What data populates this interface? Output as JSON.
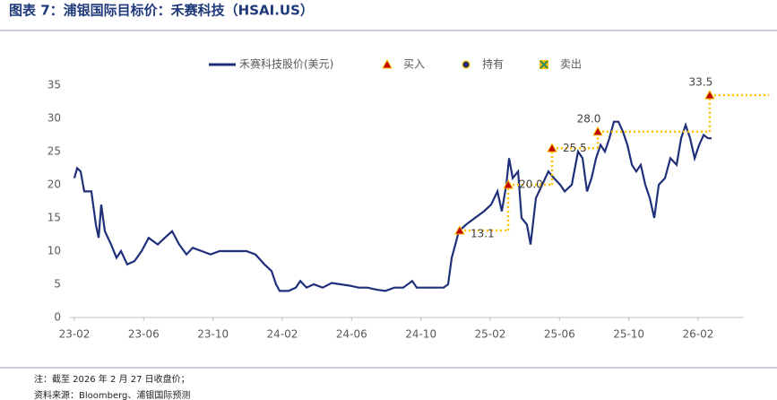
{
  "header": {
    "title": "图表 7：浦银国际目标价：禾赛科技（HSAI.US）"
  },
  "notes": [
    "注：截至 2026 年 2 月 27 日收盘价；",
    "资料来源：Bloomberg、浦银国际预测"
  ],
  "chart_data": {
    "type": "line",
    "series": [
      {
        "name": "禾赛科技股价(美元)",
        "color": "#1f2f7a",
        "x": [
          0,
          0.16,
          0.36,
          0.57,
          0.98,
          1.24,
          1.4,
          1.55,
          1.76,
          2.12,
          2.43,
          2.69,
          3.05,
          3.47,
          3.88,
          4.29,
          4.81,
          5.22,
          5.64,
          6.05,
          6.47,
          6.83,
          7.35,
          7.86,
          8.38,
          8.9,
          9.41,
          9.93,
          10.45,
          10.97,
          11.38,
          11.64,
          11.85,
          12.36,
          12.78,
          13.04,
          13.4,
          13.81,
          14.33,
          14.85,
          15.36,
          15.88,
          16.4,
          16.92,
          17.43,
          17.95,
          18.47,
          18.98,
          19.5,
          19.76,
          20.28,
          20.8,
          21.31,
          21.57,
          21.78,
          21.99,
          22.19,
          22.61,
          23.12,
          23.64,
          24.05,
          24.42,
          24.67,
          24.93,
          25.09,
          25.3,
          25.61,
          25.81,
          26.12,
          26.33,
          26.64,
          27.0,
          27.36,
          27.68,
          28.04,
          28.3,
          28.71,
          29.07,
          29.33,
          29.59,
          29.85,
          30.11,
          30.37,
          30.62,
          30.88,
          31.14,
          31.4,
          31.66,
          31.92,
          32.18,
          32.43,
          32.69,
          32.95,
          33.21,
          33.47,
          33.73,
          34.09,
          34.4,
          34.76,
          35.02,
          35.28,
          35.54,
          35.8,
          36.06,
          36.32,
          36.57,
          36.78
        ],
        "values": [
          21,
          22.5,
          22,
          19,
          19,
          14,
          12,
          17,
          13,
          11,
          9,
          10,
          8,
          8.5,
          10,
          12,
          11,
          12,
          13,
          11,
          9.5,
          10.5,
          10,
          9.5,
          10,
          10,
          10,
          10,
          9.5,
          8,
          7,
          5,
          4,
          4,
          4.5,
          5.5,
          4.5,
          5,
          4.5,
          5.2,
          5,
          4.8,
          4.5,
          4.5,
          4.2,
          4,
          4.5,
          4.5,
          5.5,
          4.5,
          4.5,
          4.5,
          4.5,
          5,
          9,
          11,
          13,
          14,
          15,
          16,
          17,
          19,
          16,
          20,
          24,
          21,
          22,
          15,
          14,
          11,
          18,
          20,
          22,
          21,
          20,
          19,
          20,
          25,
          24,
          19,
          21,
          24,
          26,
          25,
          27,
          29.5,
          29.5,
          28,
          26,
          23,
          22,
          23,
          20,
          18,
          15,
          20,
          21,
          24,
          23,
          27,
          29,
          27,
          24,
          26,
          27.5,
          27,
          27
        ]
      },
      {
        "name": "买入",
        "color": "#c00000",
        "marker": "triangle",
        "line_color": "#ffc000",
        "x": [
          22.24,
          25.04,
          27.57,
          30.21,
          36.67
        ],
        "values": [
          13.1,
          20,
          25.5,
          28,
          33.5
        ],
        "value_labels": [
          "13.1",
          "20.0",
          "25.5",
          "28.0",
          "33.5"
        ]
      },
      {
        "name": "持有",
        "color": "#1f2f7a",
        "marker": "circle",
        "x": [],
        "values": []
      },
      {
        "name": "卖出",
        "color": "#2e8b57",
        "marker": "cross",
        "x": [],
        "values": []
      }
    ],
    "xlim": [
      0,
      38.64
    ],
    "xticks": [
      {
        "value": 0,
        "label": "23-02"
      },
      {
        "value": 4,
        "label": "23-06"
      },
      {
        "value": 8,
        "label": "23-10"
      },
      {
        "value": 12,
        "label": "24-02"
      },
      {
        "value": 16,
        "label": "24-06"
      },
      {
        "value": 20,
        "label": "24-10"
      },
      {
        "value": 24,
        "label": "25-02"
      },
      {
        "value": 28,
        "label": "25-06"
      },
      {
        "value": 32,
        "label": "25-10"
      },
      {
        "value": 36,
        "label": "26-02"
      }
    ],
    "ylim": [
      0,
      35
    ],
    "yticks": [
      0,
      5,
      10,
      15,
      20,
      25,
      30,
      35
    ],
    "grid": false
  }
}
